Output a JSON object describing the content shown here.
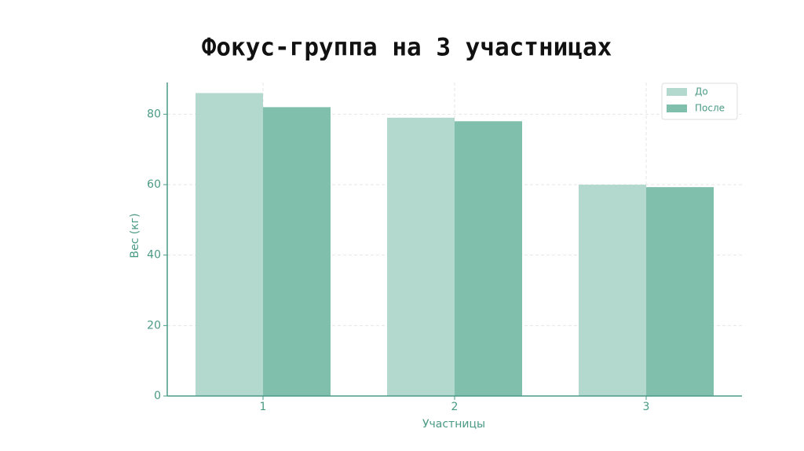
{
  "chart_data": {
    "type": "bar",
    "title": "Фокус-группа на 3 участницах",
    "x_label": "Участницы",
    "y_label": "Вес (кг)",
    "categories": [
      "1",
      "2",
      "3"
    ],
    "series": [
      {
        "name": "До",
        "color": "#b3d9cf",
        "values": [
          86,
          79,
          60
        ]
      },
      {
        "name": "После",
        "color": "#80bfac",
        "values": [
          82,
          78,
          59.3
        ]
      }
    ],
    "ylim": [
      0,
      89
    ],
    "yticks": [
      0,
      20,
      40,
      60,
      80
    ],
    "grid": true,
    "legend": "upper right"
  }
}
